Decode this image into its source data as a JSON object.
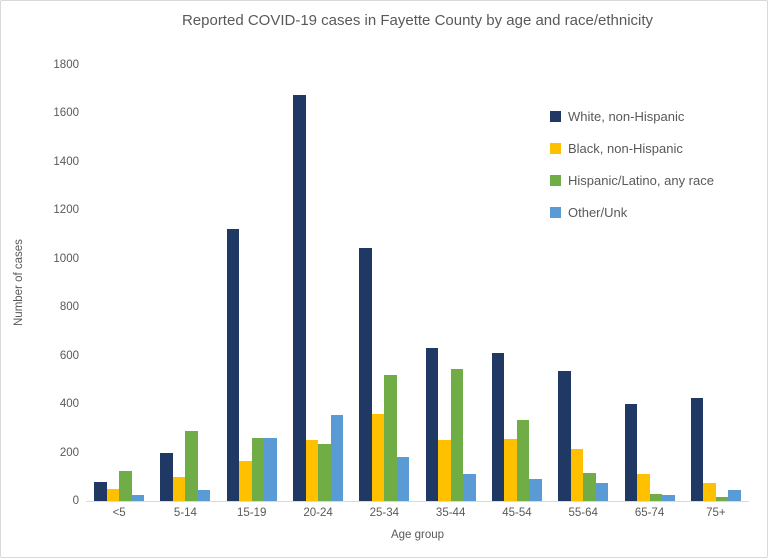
{
  "chart_data": {
    "type": "bar",
    "title": "Reported COVID-19 cases in Fayette County by age and race/ethnicity",
    "xlabel": "Age group",
    "ylabel": "Number of cases",
    "ylim": [
      0,
      1800
    ],
    "ytick_step": 200,
    "grid": false,
    "legend_position": "inside-top-right",
    "categories": [
      "<5",
      "5-14",
      "15-19",
      "20-24",
      "25-34",
      "35-44",
      "45-54",
      "55-64",
      "65-74",
      "75+"
    ],
    "series": [
      {
        "name": "White, non-Hispanic",
        "color": "#1F3864",
        "values": [
          80,
          200,
          1125,
          1675,
          1045,
          630,
          610,
          535,
          400,
          425
        ]
      },
      {
        "name": "Black, non-Hispanic",
        "color": "#FFC000",
        "values": [
          50,
          100,
          165,
          250,
          360,
          250,
          255,
          215,
          110,
          75
        ]
      },
      {
        "name": "Hispanic/Latino, any race",
        "color": "#70AD47",
        "values": [
          125,
          290,
          260,
          235,
          520,
          545,
          335,
          115,
          30,
          15
        ]
      },
      {
        "name": "Other/Unk",
        "color": "#5B9BD5",
        "values": [
          25,
          45,
          260,
          355,
          180,
          110,
          90,
          75,
          25,
          45
        ]
      }
    ]
  },
  "colors": {
    "text": "#595959",
    "axis_line": "#D9D9D9",
    "frame_border": "#D9D9D9",
    "background": "#FFFFFF"
  }
}
